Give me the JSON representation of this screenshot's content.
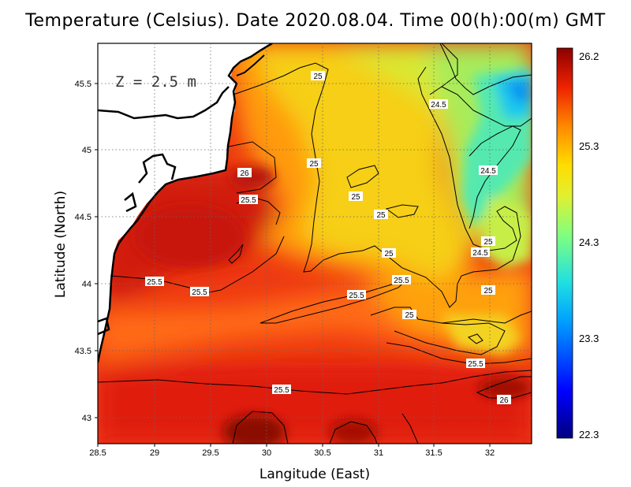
{
  "title": "Temperature (Celsius). Date 2020.08.04. Time 00(h):00(m) GMT",
  "depth_label": "Z = 2.5 m",
  "axes": {
    "xlabel": "Langitude (East)",
    "ylabel": "Latitude (North)",
    "xticks": [
      "28.5",
      "29",
      "29.5",
      "30",
      "30.5",
      "31",
      "31.5",
      "32"
    ],
    "yticks": [
      "45.5",
      "45",
      "44.5",
      "44",
      "43.5",
      "43"
    ],
    "xlim": [
      28.5,
      32.4
    ],
    "ylim": [
      42.8,
      45.8
    ]
  },
  "colorbar": {
    "ticks": [
      "26.2",
      "25.3",
      "24.3",
      "23.3",
      "22.3"
    ],
    "min": 22.3,
    "max": 26.2,
    "colors": [
      "#00007f",
      "#0000ff",
      "#00a0ff",
      "#20e0e0",
      "#7fff7f",
      "#e0f030",
      "#ffdd00",
      "#ff8800",
      "#ee2200",
      "#8b0000"
    ]
  },
  "contour_labels": [
    "25",
    "24.5",
    "25",
    "24.5",
    "26",
    "25.5",
    "25",
    "25",
    "25",
    "25",
    "24.5",
    "25.5",
    "25.5",
    "25.5",
    "25.5",
    "25",
    "25",
    "25.5",
    "25.5",
    "26"
  ],
  "chart_data": {
    "type": "heatmap",
    "title": "Temperature (Celsius). Date 2020.08.04. Time 00(h):00(m) GMT",
    "xlabel": "Langitude (East)",
    "ylabel": "Latitude (North)",
    "xlim": [
      28.5,
      32.4
    ],
    "ylim": [
      42.8,
      45.8
    ],
    "color_range": [
      22.3,
      26.2
    ],
    "contour_levels": [
      24.5,
      25,
      25.5,
      26
    ],
    "contour_label_points": [
      {
        "lon": 30.45,
        "lat": 45.55,
        "value": 25
      },
      {
        "lon": 31.55,
        "lat": 45.35,
        "value": 24.5
      },
      {
        "lon": 30.4,
        "lat": 44.9,
        "value": 25
      },
      {
        "lon": 32.0,
        "lat": 44.85,
        "value": 24.5
      },
      {
        "lon": 29.65,
        "lat": 44.8,
        "value": 26
      },
      {
        "lon": 29.68,
        "lat": 44.65,
        "value": 25.5
      },
      {
        "lon": 30.78,
        "lat": 44.65,
        "value": 25
      },
      {
        "lon": 31.0,
        "lat": 44.52,
        "value": 25
      },
      {
        "lon": 31.95,
        "lat": 44.33,
        "value": 25
      },
      {
        "lon": 31.1,
        "lat": 44.25,
        "value": 25
      },
      {
        "lon": 31.9,
        "lat": 44.25,
        "value": 24.5
      },
      {
        "lon": 28.95,
        "lat": 44.02,
        "value": 25.5
      },
      {
        "lon": 31.2,
        "lat": 44.05,
        "value": 25.5
      },
      {
        "lon": 29.35,
        "lat": 43.95,
        "value": 25.5
      },
      {
        "lon": 30.75,
        "lat": 43.93,
        "value": 25.5
      },
      {
        "lon": 31.96,
        "lat": 43.96,
        "value": 25
      },
      {
        "lon": 31.3,
        "lat": 43.75,
        "value": 25
      },
      {
        "lon": 31.9,
        "lat": 43.4,
        "value": 25.5
      },
      {
        "lon": 29.92,
        "lat": 43.2,
        "value": 25.5
      },
      {
        "lon": 32.15,
        "lat": 43.13,
        "value": 26
      }
    ]
  }
}
